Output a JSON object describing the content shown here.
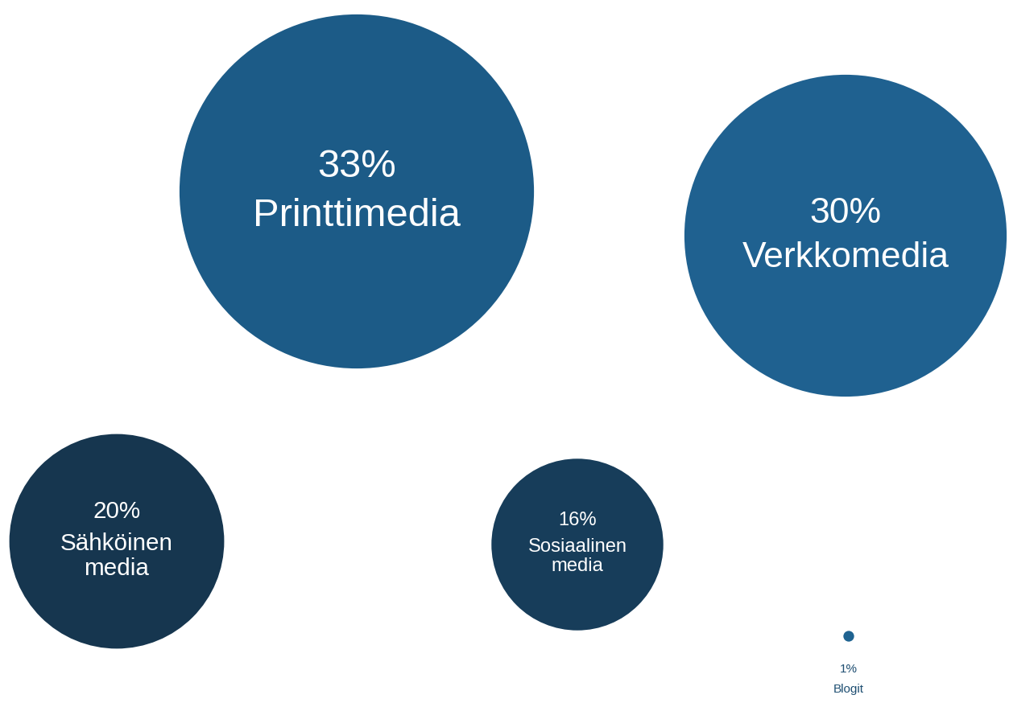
{
  "chart_data": {
    "type": "bubble",
    "categories": [
      "Printtimedia",
      "Verkkomedia",
      "Sähköinen media",
      "Sosiaalinen media",
      "Blogit"
    ],
    "values": [
      33,
      30,
      20,
      16,
      1
    ],
    "value_labels": [
      "33%",
      "30%",
      "20%",
      "16%",
      "1%"
    ],
    "colors": [
      "#1c5b87",
      "#1f6190",
      "#16364f",
      "#173d5a",
      "#1f6391"
    ],
    "data_labels": true
  }
}
